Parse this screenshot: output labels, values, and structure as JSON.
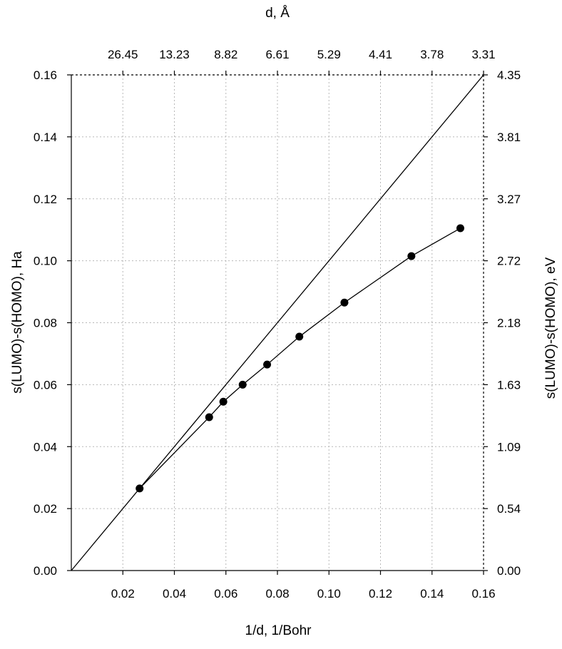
{
  "chart_data": {
    "type": "line",
    "title": "",
    "xlabel": "1/d, 1/Bohr",
    "ylabel": "s(LUMO)-s(HOMO), Ha",
    "top_xlabel": "d, Å",
    "right_ylabel": "s(LUMO)-s(HOMO), eV",
    "xlim": [
      0.0,
      0.16
    ],
    "ylim": [
      0.0,
      0.16
    ],
    "x_ticks": [
      0.02,
      0.04,
      0.06,
      0.08,
      0.1,
      0.12,
      0.14,
      0.16
    ],
    "x_tick_labels": [
      "0.02",
      "0.04",
      "0.06",
      "0.08",
      "0.10",
      "0.12",
      "0.14",
      "0.16"
    ],
    "y_ticks": [
      0.0,
      0.02,
      0.04,
      0.06,
      0.08,
      0.1,
      0.12,
      0.14,
      0.16
    ],
    "y_tick_labels": [
      "0.00",
      "0.02",
      "0.04",
      "0.06",
      "0.08",
      "0.10",
      "0.12",
      "0.14",
      "0.16"
    ],
    "top_ticks": [
      0.02,
      0.04,
      0.06,
      0.08,
      0.1,
      0.12,
      0.14,
      0.16
    ],
    "top_tick_labels": [
      "26.45",
      "13.23",
      "8.82",
      "6.61",
      "5.29",
      "4.41",
      "3.78",
      "3.31"
    ],
    "right_ticks": [
      0.0,
      0.02,
      0.04,
      0.06,
      0.08,
      0.1,
      0.12,
      0.14,
      0.16
    ],
    "right_tick_labels": [
      "0.00",
      "0.54",
      "1.09",
      "1.63",
      "2.18",
      "2.72",
      "3.27",
      "3.81",
      "4.35"
    ],
    "grid": true,
    "series": [
      {
        "marker": "circle",
        "color": "#000000",
        "x": [
          0.0265,
          0.0535,
          0.059,
          0.0665,
          0.076,
          0.0885,
          0.106,
          0.132,
          0.151
        ],
        "y": [
          0.0265,
          0.0495,
          0.0545,
          0.06,
          0.0665,
          0.0755,
          0.0865,
          0.1015,
          0.1105
        ]
      },
      {
        "marker": "none",
        "color": "#000000",
        "x": [
          0.0,
          0.16
        ],
        "y": [
          0.0,
          0.16
        ]
      }
    ]
  }
}
